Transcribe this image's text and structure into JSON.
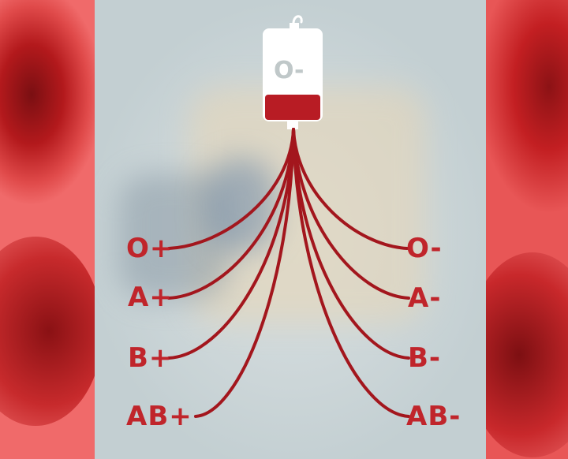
{
  "bag": {
    "blood_type": "O-"
  },
  "recipients_left": [
    "O+",
    "A+",
    "B+",
    "AB+"
  ],
  "recipients_right": [
    "O-",
    "A-",
    "B-",
    "AB-"
  ],
  "colors": {
    "line": "#a3161d",
    "label": "#c0252b",
    "bag_fill": "#b81c24"
  }
}
